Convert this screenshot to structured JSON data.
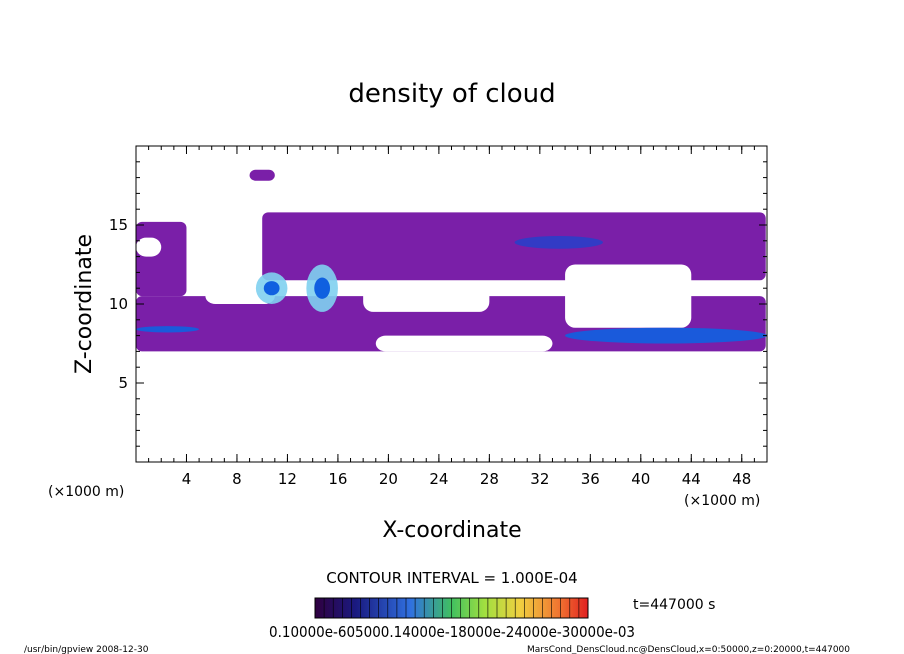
{
  "chart_data": {
    "type": "heatmap",
    "title": "density of cloud",
    "xlabel": "X-coordinate",
    "ylabel": "Z-coordinate",
    "x_unit": "(×1000 m)",
    "y_unit": "(×1000 m)",
    "xlim": [
      0,
      50
    ],
    "ylim": [
      0,
      20
    ],
    "x_ticks": [
      "4",
      "8",
      "12",
      "16",
      "20",
      "24",
      "28",
      "32",
      "36",
      "40",
      "44",
      "48"
    ],
    "y_ticks": [
      "5",
      "10",
      "15"
    ],
    "contour_interval": "CONTOUR INTERVAL = 1.000E-04",
    "time_label": "t=447000 s",
    "colorbar_labels_text": "0.10000e-605000.14000e-18000e-24000e-30000e-03",
    "colors": {
      "low": "#7a1fa8",
      "mid_low": "#5a2bb0",
      "mid": "#2a3ec8",
      "high": "#1060e0",
      "peak": "#80d0f0"
    },
    "regions": [
      {
        "name": "lower-band",
        "x": [
          0,
          49.9
        ],
        "z": [
          7.0,
          10.5
        ],
        "level": "low"
      },
      {
        "name": "upper-band-left",
        "x": [
          0,
          4
        ],
        "z": [
          10.5,
          15.2
        ],
        "level": "low"
      },
      {
        "name": "upper-band-main",
        "x": [
          10,
          49.9
        ],
        "z": [
          11.5,
          15.8
        ],
        "level": "low"
      },
      {
        "name": "blob-top",
        "x": [
          9.0,
          11.0
        ],
        "z": [
          17.8,
          18.5
        ],
        "level": "low"
      }
    ],
    "features": [
      {
        "name": "left-streak",
        "x": [
          0,
          5
        ],
        "z": [
          8.2,
          8.6
        ],
        "level": "high"
      },
      {
        "name": "vortex-1",
        "x": [
          9.5,
          12
        ],
        "z": [
          10,
          12
        ],
        "level": "peak"
      },
      {
        "name": "vortex-2",
        "x": [
          13.5,
          16
        ],
        "z": [
          9.5,
          12.5
        ],
        "level": "peak"
      },
      {
        "name": "right-streak-low",
        "x": [
          34,
          50
        ],
        "z": [
          7.5,
          8.5
        ],
        "level": "high"
      },
      {
        "name": "right-streak-mid",
        "x": [
          30,
          37
        ],
        "z": [
          13.5,
          14.3
        ],
        "level": "mid"
      }
    ],
    "holes": [
      {
        "name": "gap-left",
        "x": [
          0,
          2
        ],
        "z": [
          13,
          14.2
        ]
      },
      {
        "name": "gap-center",
        "x": [
          18,
          28
        ],
        "z": [
          9.5,
          11.2
        ]
      },
      {
        "name": "gap-right",
        "x": [
          34,
          44
        ],
        "z": [
          8.5,
          12.5
        ]
      },
      {
        "name": "gap-bottom-mid",
        "x": [
          19,
          33
        ],
        "z": [
          7.0,
          8.0
        ]
      },
      {
        "name": "gap-left-lower",
        "x": [
          5.5,
          11
        ],
        "z": [
          10,
          11
        ]
      }
    ],
    "grid": false
  },
  "footer": {
    "left": "/usr/bin/gpview   2008-12-30",
    "right": "MarsCond_DensCloud.nc@DensCloud,x=0:50000,z=0:20000,t=447000"
  }
}
